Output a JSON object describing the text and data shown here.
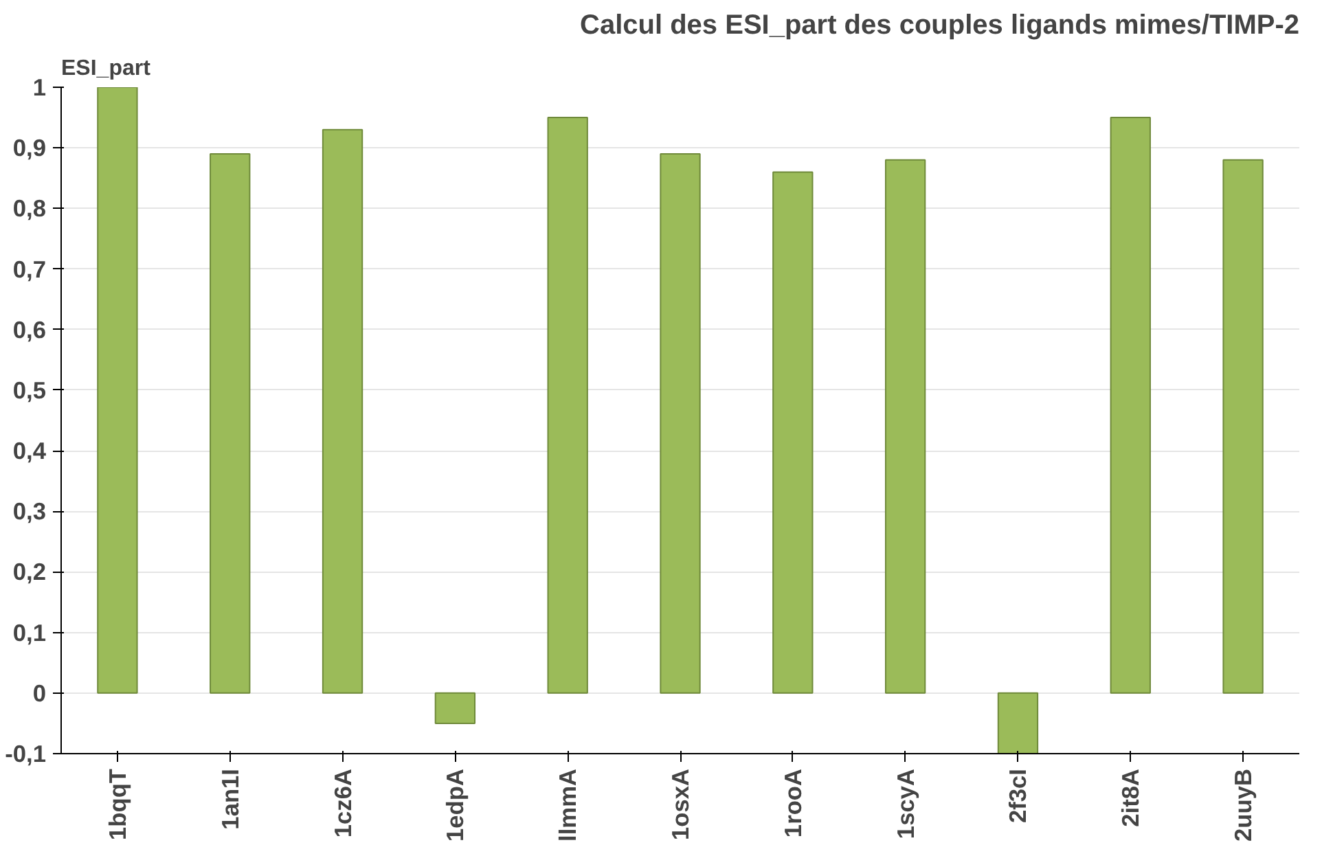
{
  "chart_data": {
    "type": "bar",
    "title": "Calcul des ESI_part des couples ligands mimes/TIMP-2",
    "ylabel": "ESI_part",
    "categories": [
      "1bqqT",
      "1an1I",
      "1cz6A",
      "1edpA",
      "llmmA",
      "1osxA",
      "1rooA",
      "1scyA",
      "2f3cI",
      "2it8A",
      "2uuyB"
    ],
    "values": [
      1.0,
      0.89,
      0.93,
      -0.05,
      0.95,
      0.89,
      0.86,
      0.88,
      -0.1,
      0.95,
      0.88
    ],
    "color": "#9bbb59",
    "ylim": [
      -0.1,
      1
    ],
    "yticks": [
      {
        "value": -0.1,
        "label": "-0,1"
      },
      0,
      {
        "value": 0.1,
        "label": "0,1"
      },
      {
        "value": 0.2,
        "label": "0,2"
      },
      {
        "value": 0.3,
        "label": "0,3"
      },
      {
        "value": 0.4,
        "label": "0,4"
      },
      {
        "value": 0.5,
        "label": "0,5"
      },
      {
        "value": 0.6,
        "label": "0,6"
      },
      {
        "value": 0.7,
        "label": "0,7"
      },
      {
        "value": 0.8,
        "label": "0,8"
      },
      {
        "value": 0.9,
        "label": "0,9"
      },
      1
    ],
    "grid": "y"
  }
}
